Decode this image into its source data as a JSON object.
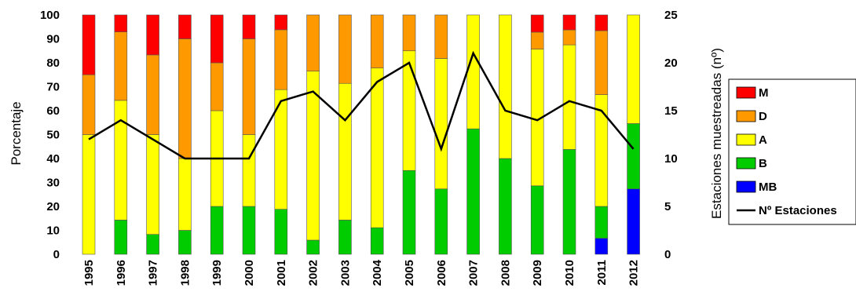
{
  "chart_data": {
    "type": "bar",
    "stacked": true,
    "categories": [
      "1995",
      "1996",
      "1997",
      "1998",
      "1999",
      "2000",
      "2001",
      "2002",
      "2003",
      "2004",
      "2005",
      "2006",
      "2007",
      "2008",
      "2009",
      "2010",
      "2011",
      "2012"
    ],
    "ylabel": "Porcentaje",
    "y2label": "Estaciones muestreadas (nº)",
    "ylim": [
      0,
      100
    ],
    "y2lim": [
      0,
      25
    ],
    "yticks": [
      "0",
      "10",
      "20",
      "30",
      "40",
      "50",
      "60",
      "70",
      "80",
      "90",
      "100"
    ],
    "y2ticks": [
      "0",
      "5",
      "10",
      "15",
      "20",
      "25"
    ],
    "legend_position": "right",
    "grid": false,
    "series": [
      {
        "name": "MB",
        "color": "#0000ff",
        "values": [
          0,
          0,
          0,
          0,
          0,
          0,
          0,
          0,
          0,
          0,
          0,
          0,
          0,
          0,
          0,
          0,
          6.7,
          27.3
        ]
      },
      {
        "name": "B",
        "color": "#00cc00",
        "values": [
          0,
          14.3,
          8.3,
          10,
          20,
          20,
          18.8,
          5.9,
          14.3,
          11.1,
          35,
          27.3,
          52.4,
          40,
          28.6,
          43.8,
          13.3,
          27.3
        ]
      },
      {
        "name": "A",
        "color": "#ffff00",
        "values": [
          50,
          50,
          41.7,
          30,
          40,
          30,
          50,
          70.6,
          57.1,
          66.7,
          50,
          54.5,
          47.6,
          60,
          57.1,
          43.7,
          46.7,
          45.4
        ]
      },
      {
        "name": "D",
        "color": "#ff9900",
        "values": [
          25,
          28.6,
          33.3,
          50,
          20,
          40,
          25,
          23.5,
          28.6,
          22.2,
          15,
          18.2,
          0,
          0,
          7.1,
          6.25,
          26.7,
          0
        ]
      },
      {
        "name": "M",
        "color": "#ff0000",
        "values": [
          25,
          7.1,
          16.7,
          10,
          20,
          10,
          6.2,
          0,
          0,
          0,
          0,
          0,
          0,
          0,
          7.2,
          6.25,
          6.6,
          0
        ]
      }
    ],
    "line": {
      "name": "Nº Estaciones",
      "color": "#000000",
      "values": [
        12,
        14,
        12,
        10,
        10,
        10,
        16,
        17,
        14,
        18,
        20,
        11,
        21,
        15,
        14,
        16,
        15,
        11
      ]
    },
    "legend": [
      {
        "label": "M",
        "color": "#ff0000",
        "kind": "box"
      },
      {
        "label": "D",
        "color": "#ff9900",
        "kind": "box"
      },
      {
        "label": "A",
        "color": "#ffff00",
        "kind": "box"
      },
      {
        "label": "B",
        "color": "#00cc00",
        "kind": "box"
      },
      {
        "label": "MB",
        "color": "#0000ff",
        "kind": "box"
      },
      {
        "label": "Nº Estaciones",
        "color": "#000000",
        "kind": "line"
      }
    ]
  }
}
